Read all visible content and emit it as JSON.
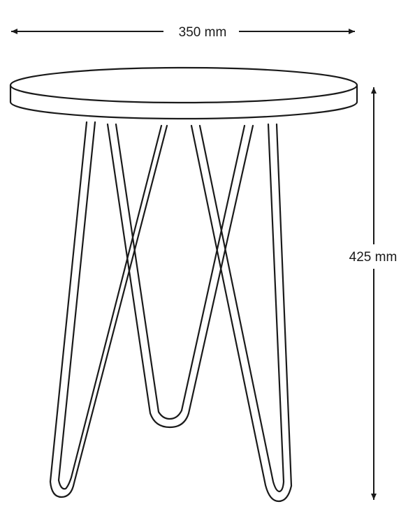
{
  "width_dimension": {
    "label": "350 mm"
  },
  "height_dimension": {
    "label": "425 mm"
  },
  "colors": {
    "line": "#1a1a1a",
    "background": "#ffffff"
  }
}
